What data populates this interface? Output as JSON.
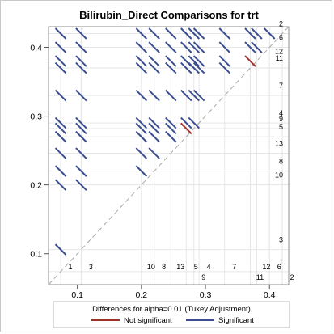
{
  "chart_data": {
    "type": "diffogram",
    "title": "Bilirubin_Direct Comparisons for trt",
    "footer": "Differences for alpha=0.01 (Tukey Adjustment)",
    "legend": [
      {
        "label": "Not significant",
        "color": "#a0302a"
      },
      {
        "label": "Significant",
        "color": "#3a4d8f"
      }
    ],
    "legend_position": "bottom",
    "grid": true,
    "xlim": [
      0.055,
      0.43
    ],
    "ylim": [
      0.055,
      0.43
    ],
    "ticks": [
      {
        "value": 0.1,
        "label": "0.1"
      },
      {
        "value": 0.2,
        "label": "0.2"
      },
      {
        "value": 0.3,
        "label": "0.3"
      },
      {
        "value": 0.4,
        "label": "0.4"
      }
    ],
    "levels": [
      {
        "name": "1",
        "mean": 0.074
      },
      {
        "name": "3",
        "mean": 0.106
      },
      {
        "name": "10",
        "mean": 0.2
      },
      {
        "name": "8",
        "mean": 0.22
      },
      {
        "name": "13",
        "mean": 0.246
      },
      {
        "name": "5",
        "mean": 0.27
      },
      {
        "name": "9",
        "mean": 0.282
      },
      {
        "name": "4",
        "mean": 0.29
      },
      {
        "name": "7",
        "mean": 0.33
      },
      {
        "name": "11",
        "mean": 0.37
      },
      {
        "name": "12",
        "mean": 0.38
      },
      {
        "name": "6",
        "mean": 0.4
      },
      {
        "name": "2",
        "mean": 0.42
      }
    ],
    "bottom_labels_row1": [
      "1",
      "3",
      "10",
      "8",
      "13",
      "5",
      "4",
      "7",
      "12",
      "6"
    ],
    "bottom_labels_row2": [
      "9",
      "11",
      "2"
    ],
    "right_labels": [
      "2",
      "6",
      "12",
      "11",
      "7",
      "4",
      "9",
      "5",
      "13",
      "8",
      "10",
      "3",
      "1"
    ],
    "not_significant_pairs": [
      [
        "9",
        "5"
      ],
      [
        "12",
        "11"
      ]
    ]
  }
}
